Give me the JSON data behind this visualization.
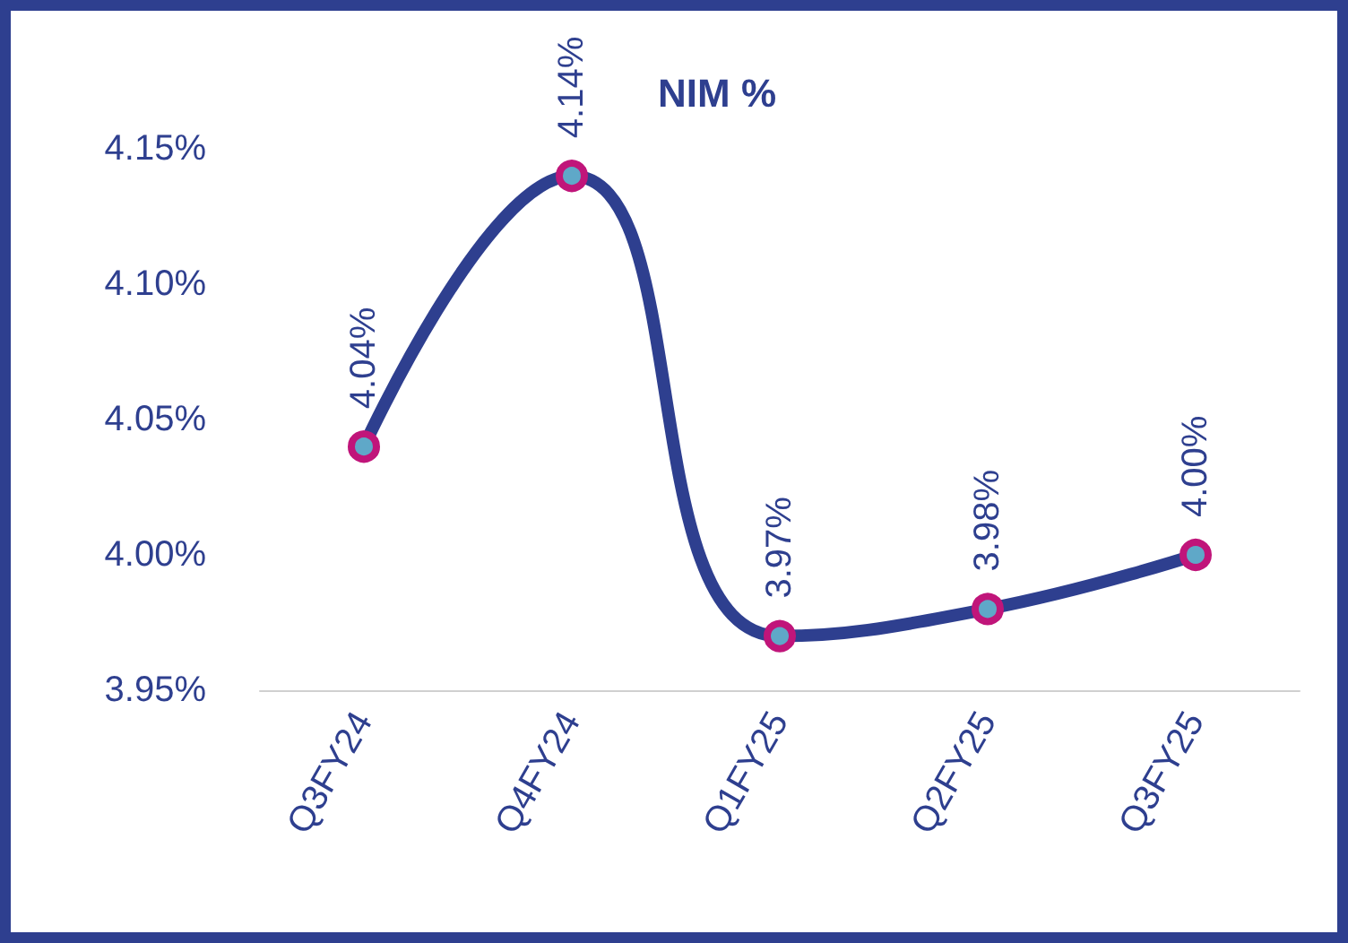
{
  "chart_data": {
    "type": "line",
    "title": "NIM %",
    "categories": [
      "Q3FY24",
      "Q4FY24",
      "Q1FY25",
      "Q2FY25",
      "Q3FY25"
    ],
    "series": [
      {
        "color": "#2e3f8f",
        "values": [
          4.04,
          4.14,
          3.97,
          3.98,
          4.0
        ],
        "value_labels": [
          "4.04%",
          "4.14%",
          "3.97%",
          "3.98%",
          "4.00%"
        ]
      }
    ],
    "ylim": [
      3.95,
      4.15
    ],
    "yticks": [
      {
        "value": 3.95,
        "label": "3.95%"
      },
      {
        "value": 4.0,
        "label": "4.00%"
      },
      {
        "value": 4.05,
        "label": "4.05%"
      },
      {
        "value": 4.1,
        "label": "4.10%"
      },
      {
        "value": 4.15,
        "label": "4.15%"
      }
    ],
    "grid": false,
    "marker": "circle",
    "line_style": "solid"
  }
}
